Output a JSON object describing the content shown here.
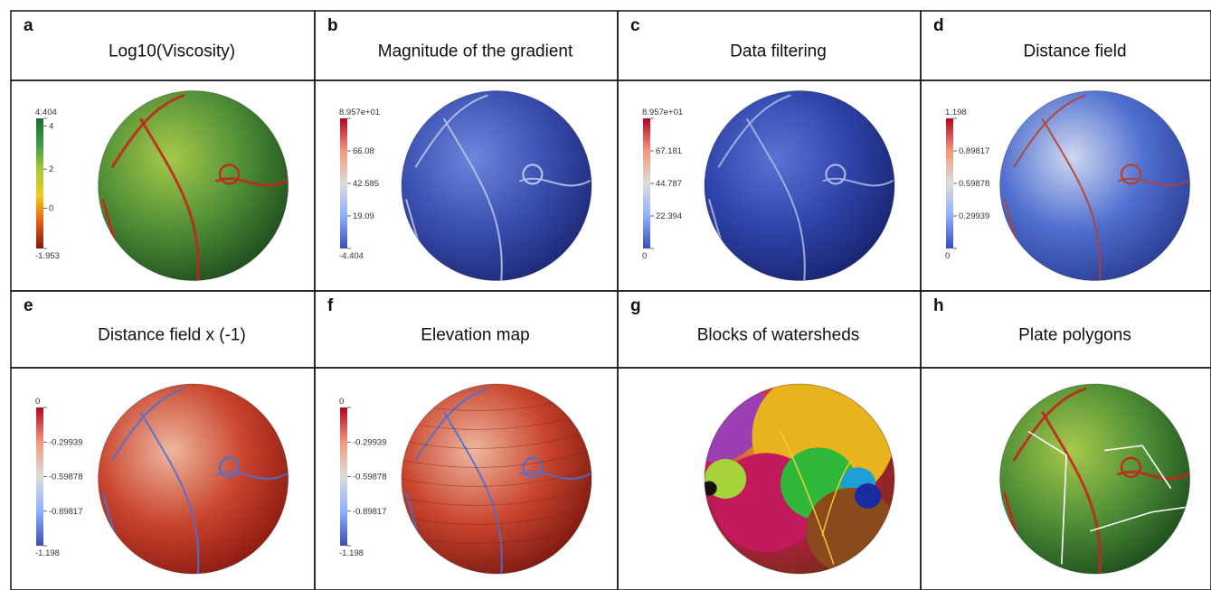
{
  "panels": [
    {
      "letter": "a",
      "title": "Log10(Viscosity)",
      "colormap": "viscosity",
      "legend_ticks": [
        "4.404",
        "4",
        "2",
        "0",
        "-1.953"
      ],
      "tick_levels": [
        1.0,
        0.94,
        0.61,
        0.31,
        0.0
      ],
      "legend_colors": [
        "#1f6b34",
        "#3f9a3f",
        "#a9c83b",
        "#f3c81d",
        "#e25a12",
        "#8a1410"
      ]
    },
    {
      "letter": "b",
      "title": "Magnitude of the gradient",
      "colormap": "coolwarm",
      "legend_ticks": [
        "8.957e+01",
        "66.08",
        "42.585",
        "19.09",
        "-4.404"
      ],
      "tick_levels": [
        1.0,
        0.75,
        0.5,
        0.25,
        0.0
      ],
      "legend_colors": [
        "#b40426",
        "#f4987a",
        "#dddcdc",
        "#8db0fe",
        "#3b4cc0"
      ]
    },
    {
      "letter": "c",
      "title": "Data filtering",
      "colormap": "coolwarm",
      "legend_ticks": [
        "8.957e+01",
        "67.181",
        "44.787",
        "22.394",
        "0"
      ],
      "tick_levels": [
        1.0,
        0.75,
        0.5,
        0.25,
        0.0
      ],
      "legend_colors": [
        "#b40426",
        "#f4987a",
        "#dddcdc",
        "#8db0fe",
        "#3b4cc0"
      ]
    },
    {
      "letter": "d",
      "title": "Distance field",
      "colormap": "coolwarm",
      "legend_ticks": [
        "1.198",
        "0.89817",
        "0.59878",
        "0.29939",
        "0"
      ],
      "tick_levels": [
        1.0,
        0.75,
        0.5,
        0.25,
        0.0
      ],
      "legend_colors": [
        "#b40426",
        "#f4987a",
        "#dddcdc",
        "#8db0fe",
        "#3b4cc0"
      ]
    },
    {
      "letter": "e",
      "title": "Distance field x (-1)",
      "colormap": "coolwarm",
      "legend_ticks": [
        "0",
        "-0.29939",
        "-0.59878",
        "-0.89817",
        "-1.198"
      ],
      "tick_levels": [
        1.0,
        0.75,
        0.5,
        0.25,
        0.0
      ],
      "legend_colors": [
        "#b40426",
        "#f4987a",
        "#dddcdc",
        "#8db0fe",
        "#3b4cc0"
      ]
    },
    {
      "letter": "f",
      "title": "Elevation map",
      "colormap": "coolwarm",
      "legend_ticks": [
        "0",
        "-0.29939",
        "-0.59878",
        "-0.89817",
        "-1.198"
      ],
      "tick_levels": [
        1.0,
        0.75,
        0.5,
        0.25,
        0.0
      ],
      "legend_colors": [
        "#b40426",
        "#f4987a",
        "#dddcdc",
        "#8db0fe",
        "#3b4cc0"
      ]
    },
    {
      "letter": "g",
      "title": "Blocks of watersheds",
      "colormap": "categorical",
      "legend_ticks": [],
      "tick_levels": [],
      "legend_colors": []
    },
    {
      "letter": "h",
      "title": "Plate polygons",
      "colormap": "viscosity",
      "legend_ticks": [],
      "tick_levels": [],
      "legend_colors": []
    }
  ],
  "sphere_colors": {
    "a": {
      "base": "#4f8f36",
      "light": "#a8c94a",
      "dark": "#1f4f1f",
      "feature": "#c0281c"
    },
    "b": {
      "base": "#3a4fb0",
      "light": "#6d86dd",
      "dark": "#1e2a78",
      "feature": "#b7c3e8"
    },
    "c": {
      "base": "#2f44aa",
      "light": "#5a73d4",
      "dark": "#1a2570",
      "feature": "#a9b6e2"
    },
    "d": {
      "base": "#4f6fd0",
      "light": "#cfd8ef",
      "dark": "#2c3f96",
      "feature": "#b54030"
    },
    "e": {
      "base": "#c9452e",
      "light": "#efb7a0",
      "dark": "#8e1b12",
      "feature": "#4f6fd0"
    },
    "f": {
      "base": "#c9452e",
      "light": "#efb7a0",
      "dark": "#7f1a12",
      "feature": "#4f6fd0"
    },
    "g": {
      "base": "#c3195d",
      "light": "#e8b31d",
      "dark": "#7a2b10",
      "feature": "#2fb83a"
    },
    "h": {
      "base": "#4f8f36",
      "light": "#a8c94a",
      "dark": "#1f4f1f",
      "feature": "#c0281c"
    }
  },
  "watershed_colors": [
    "#c3195d",
    "#e8b31d",
    "#2fb83a",
    "#9b3fb3",
    "#1e9fd8",
    "#8a4a1c",
    "#a6d23a",
    "#1a2aa0",
    "#111111",
    "#cf6a25"
  ]
}
